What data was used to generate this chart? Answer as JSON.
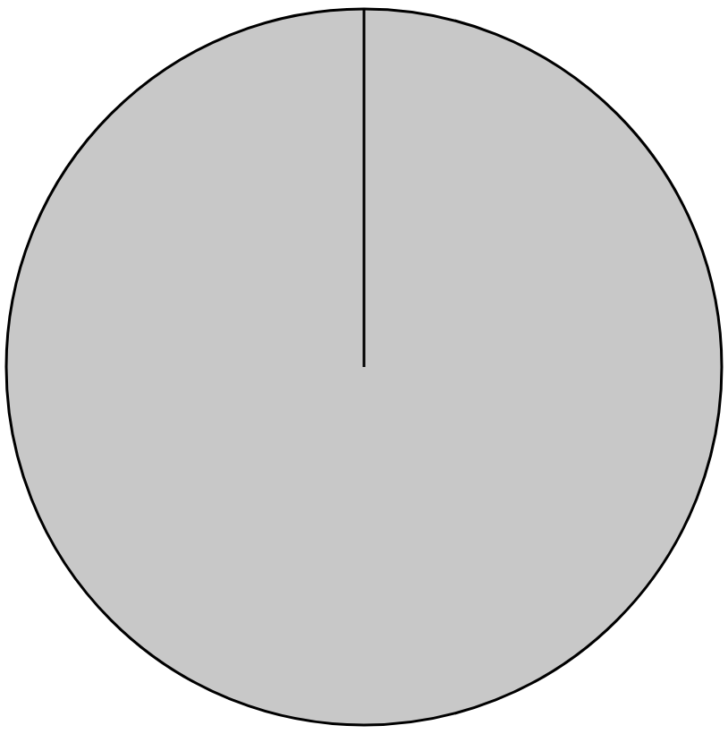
{
  "chart_data": {
    "type": "pie",
    "categories": [
      null
    ],
    "values": [
      100
    ],
    "colors": [
      "#c8c8c8"
    ],
    "legend": false
  }
}
